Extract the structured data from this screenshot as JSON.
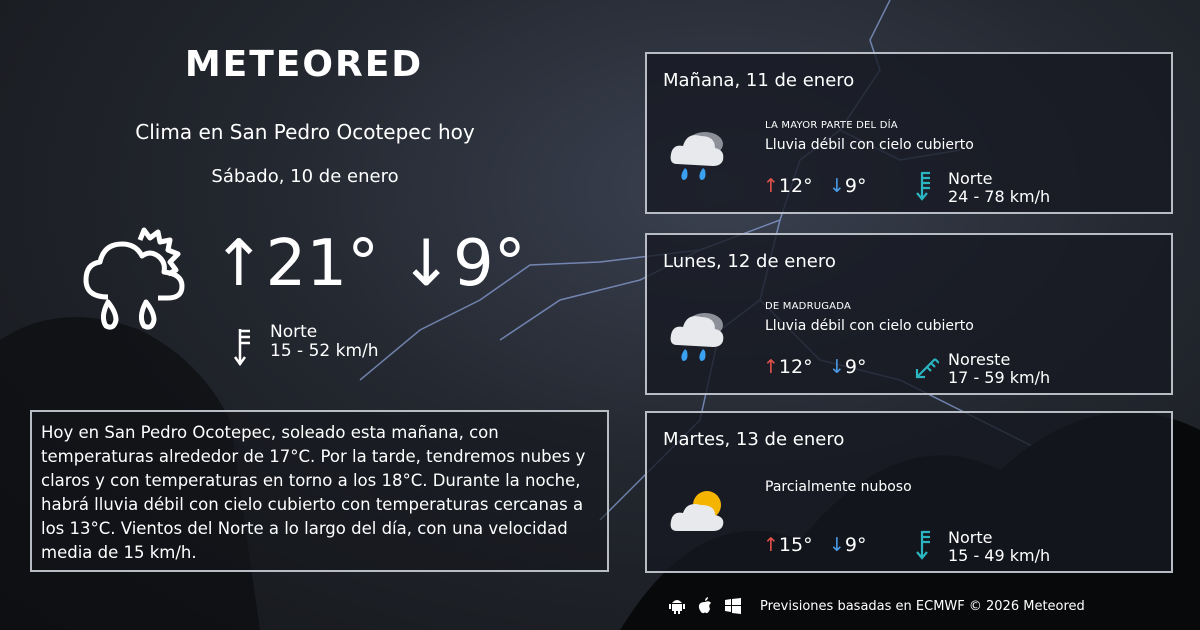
{
  "brand": "METEORED",
  "header": {
    "title": "Clima en San Pedro Ocotepec hoy",
    "date": "Sábado, 10 de enero"
  },
  "today": {
    "icon": "rain-partly-sunny-icon",
    "high": "↑21°",
    "low": "↓9°",
    "wind_dir": "Norte",
    "wind_speed": "15 - 52 km/h"
  },
  "description": "Hoy en San Pedro Ocotepec, soleado esta mañana, con temperaturas alrededor de 17°C. Por la tarde, tendremos nubes y claros y con temperaturas en torno a los 18°C. Durante la noche, habrá lluvia débil con cielo cubierto  con temperaturas cercanas a los 13°C. Vientos del Norte a lo largo del día, con una velocidad media de 15 km/h.",
  "forecast": [
    {
      "day": "Mañana, 11 de enero",
      "when": "LA MAYOR PARTE DEL DÍA",
      "condition": "Lluvia débil con cielo cubierto",
      "icon": "rain-cloud-icon",
      "high": "12°",
      "low": "9°",
      "wind_dir": "Norte",
      "wind_speed": "24 - 78 km/h"
    },
    {
      "day": "Lunes, 12 de enero",
      "when": "DE MADRUGADA",
      "condition": "Lluvia débil con cielo cubierto",
      "icon": "rain-cloud-icon",
      "high": "12°",
      "low": "9°",
      "wind_dir": "Noreste",
      "wind_speed": "17 - 59 km/h"
    },
    {
      "day": "Martes, 13 de enero",
      "when": "",
      "condition": "Parcialmente nuboso",
      "icon": "partly-cloudy-icon",
      "high": "15°",
      "low": "9°",
      "wind_dir": "Norte",
      "wind_speed": "15 - 49 km/h"
    }
  ],
  "footer": {
    "text": "Previsiones basadas en ECMWF © 2026 Meteored",
    "platforms": [
      "android-icon",
      "apple-icon",
      "windows-icon"
    ]
  },
  "colors": {
    "high": "#e5534b",
    "low": "#4a9be8",
    "wind": "#2bb5c0"
  }
}
